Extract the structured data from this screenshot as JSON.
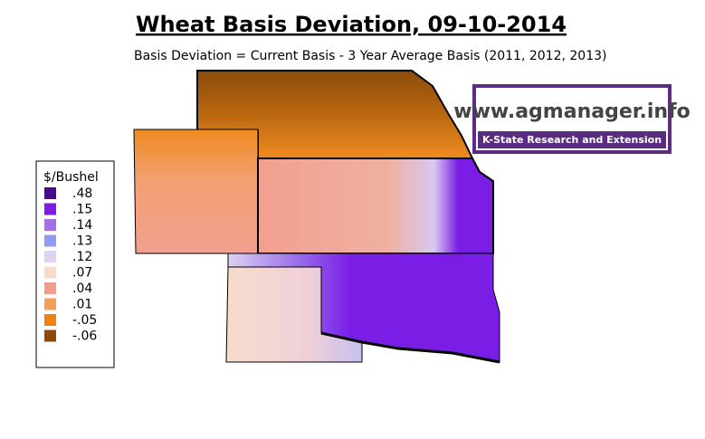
{
  "title": "Wheat Basis Deviation, 09-10-2014",
  "subtitle": "Basis Deviation = Current Basis - 3 Year Average Basis (2011, 2012, 2013)",
  "legend": {
    "title": "$/Bushel",
    "items": [
      {
        "label": ".48",
        "color": "#4a0a8e"
      },
      {
        "label": ".15",
        "color": "#7a1ee6"
      },
      {
        "label": ".14",
        "color": "#a66ee8"
      },
      {
        "label": ".13",
        "color": "#8f9cf0"
      },
      {
        "label": ".12",
        "color": "#ddd2f2"
      },
      {
        "label": ".07",
        "color": "#f7dccb"
      },
      {
        "label": ".04",
        "color": "#f29c8c"
      },
      {
        "label": ".01",
        "color": "#f2a05a"
      },
      {
        "label": "-.05",
        "color": "#f08010"
      },
      {
        "label": "-.06",
        "color": "#8c4a0a"
      }
    ]
  },
  "logo": {
    "url": "www.agmanager.info",
    "org": "K-State Research and Extension"
  }
}
